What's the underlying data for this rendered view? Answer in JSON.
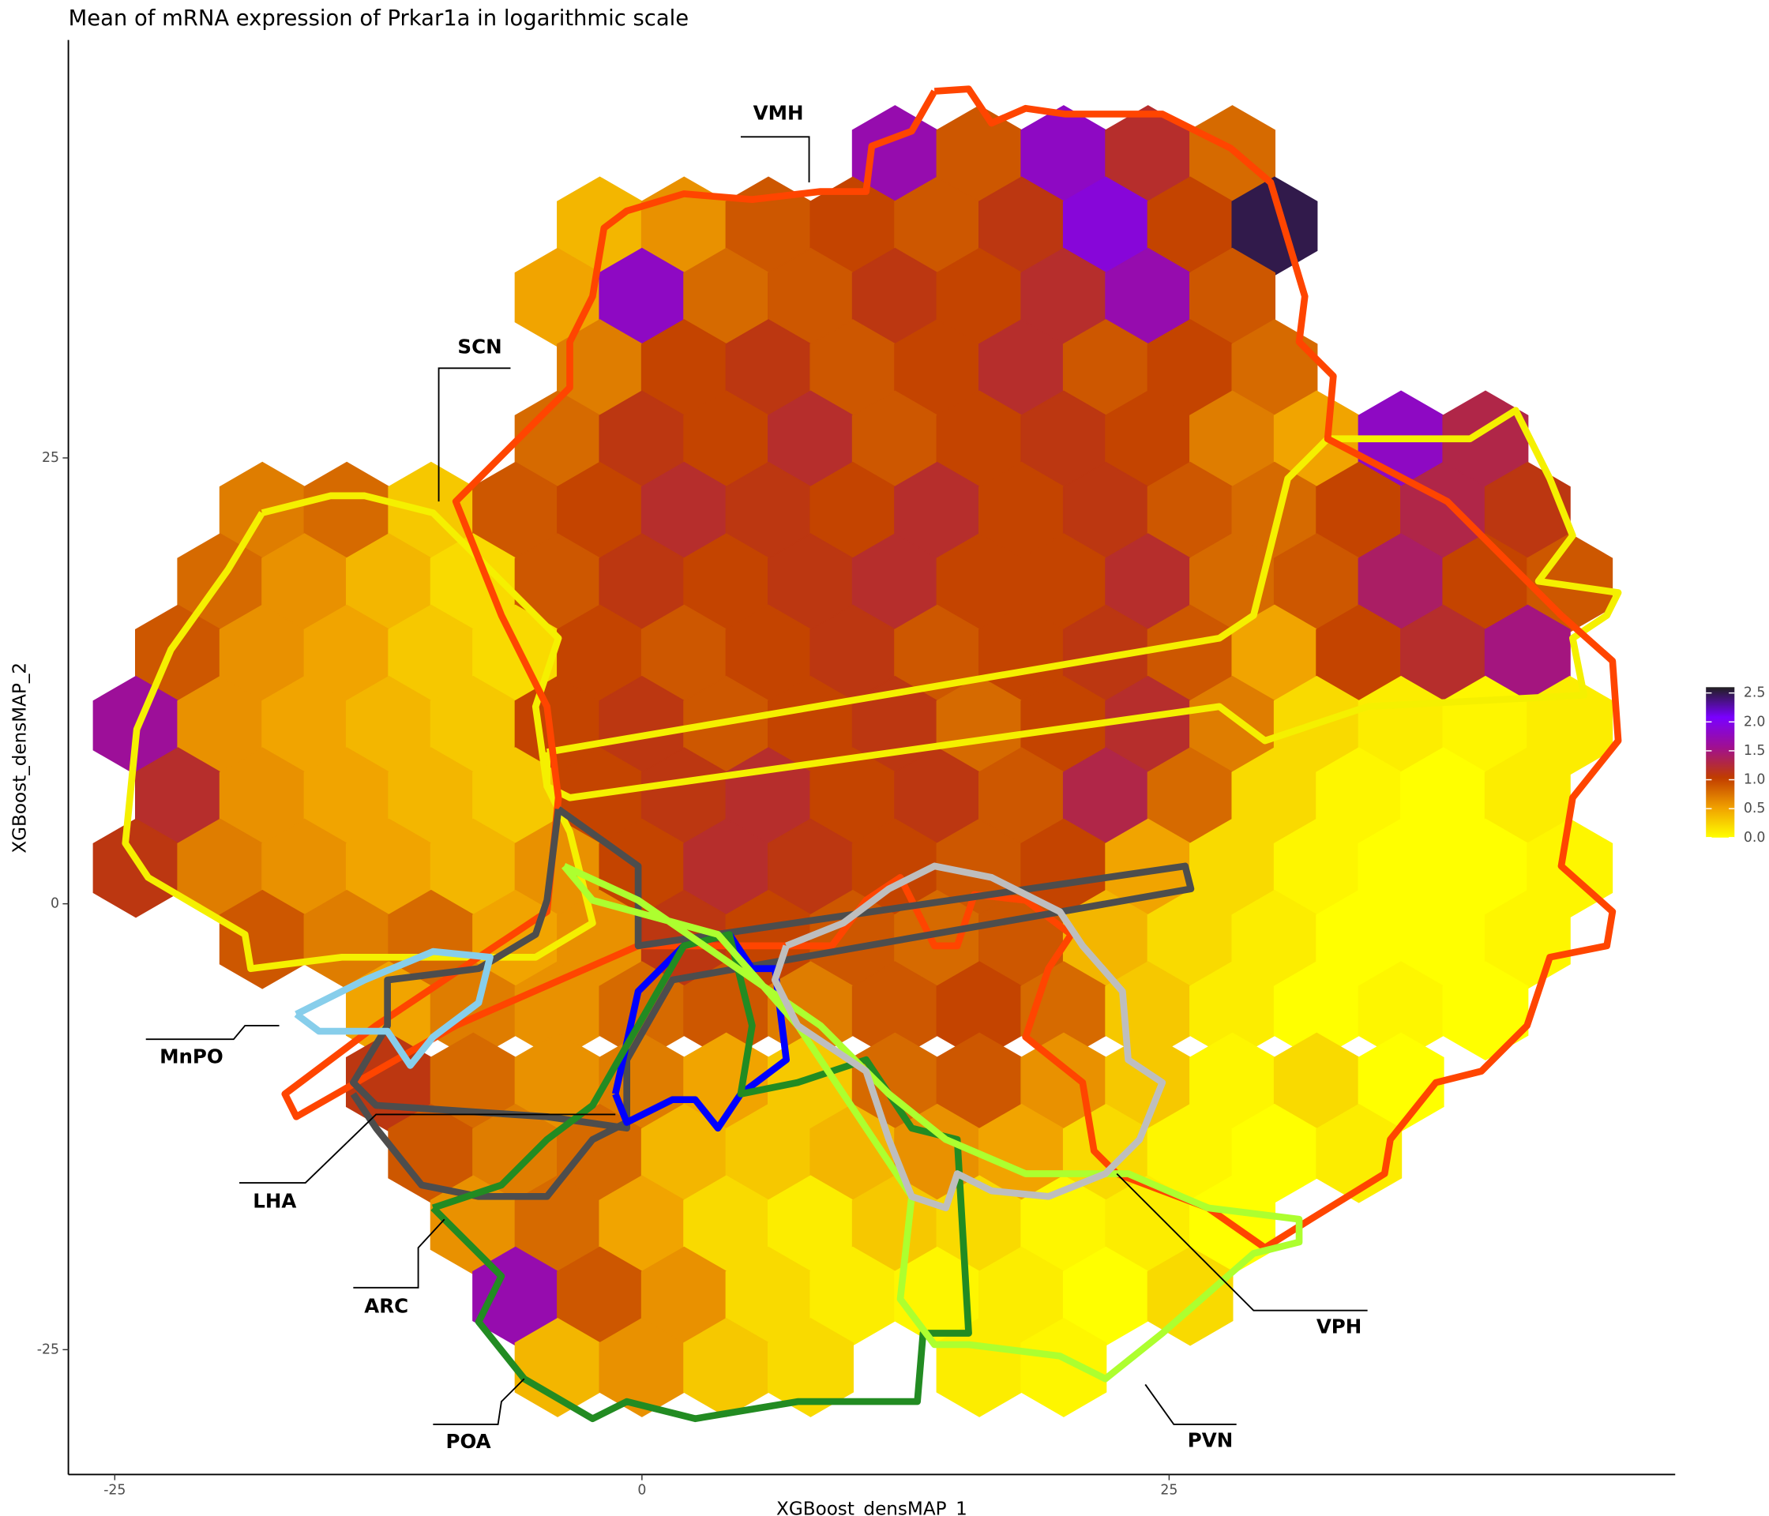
{
  "chart_data": {
    "type": "hexbin",
    "title": "Mean of mRNA expression of Prkar1a in logarithmic scale",
    "x_label": "XGBoost_densMAP_1",
    "y_label": "XGBoost_densMAP_2",
    "xlim": [
      -27.2,
      49
    ],
    "ylim": [
      -32,
      48.4
    ],
    "xticks": [
      -25,
      0,
      25
    ],
    "yticks": [
      -25,
      0,
      25
    ],
    "rows": [
      {
        "y": 42,
        "x": [
          12,
          16,
          20,
          24,
          28
        ],
        "values": [
          1.7,
          0.9,
          1.8,
          1.2,
          0.8
        ]
      },
      {
        "y": 38,
        "x": [
          -2,
          2,
          6,
          10,
          14,
          18,
          22,
          26,
          30
        ],
        "values": [
          0.4,
          0.6,
          0.9,
          1.0,
          0.9,
          1.1,
          1.9,
          1.0,
          2.5
        ]
      },
      {
        "y": 34,
        "x": [
          -4,
          0,
          4,
          8,
          12,
          16,
          20,
          24,
          28
        ],
        "values": [
          0.5,
          1.8,
          0.8,
          0.9,
          1.1,
          1.0,
          1.2,
          1.7,
          0.9
        ]
      },
      {
        "y": 30,
        "x": [
          -2,
          2,
          6,
          10,
          14,
          18,
          22,
          26,
          30
        ],
        "values": [
          0.7,
          1.0,
          1.1,
          0.9,
          1.0,
          1.2,
          0.9,
          1.0,
          0.8
        ]
      },
      {
        "y": 26,
        "x": [
          -4,
          0,
          4,
          8,
          12,
          16,
          20,
          24,
          28,
          32,
          36,
          40
        ],
        "values": [
          0.8,
          1.1,
          1.0,
          1.2,
          0.9,
          1.0,
          1.1,
          1.0,
          0.7,
          0.5,
          1.8,
          1.3
        ]
      },
      {
        "y": 22,
        "x": [
          -18,
          -14,
          -10,
          -6,
          -2,
          2,
          6,
          10,
          14,
          18,
          22,
          26,
          30,
          34,
          38,
          42
        ],
        "values": [
          0.7,
          0.8,
          0.3,
          0.9,
          1.0,
          1.2,
          1.1,
          1.0,
          1.2,
          1.0,
          1.1,
          0.9,
          0.8,
          1.0,
          1.3,
          1.1
        ]
      },
      {
        "y": 18,
        "x": [
          -20,
          -16,
          -12,
          -8,
          -4,
          0,
          4,
          8,
          12,
          16,
          20,
          24,
          28,
          32,
          36,
          40,
          44
        ],
        "values": [
          0.8,
          0.6,
          0.4,
          0.2,
          0.9,
          1.1,
          1.0,
          1.1,
          1.2,
          1.0,
          1.0,
          1.2,
          0.8,
          0.9,
          1.4,
          1.0,
          0.9
        ]
      },
      {
        "y": 14,
        "x": [
          -22,
          -18,
          -14,
          -10,
          -6,
          -2,
          2,
          6,
          10,
          14,
          18,
          22,
          26,
          30,
          34,
          38,
          42
        ],
        "values": [
          0.9,
          0.6,
          0.5,
          0.3,
          0.2,
          1.0,
          0.9,
          1.0,
          1.1,
          0.9,
          1.0,
          1.1,
          0.9,
          0.5,
          1.0,
          1.2,
          1.5
        ]
      },
      {
        "y": 10,
        "x": [
          -24,
          -20,
          -16,
          -12,
          -8,
          -4,
          0,
          4,
          8,
          12,
          16,
          20,
          24,
          28,
          32,
          36,
          40,
          44
        ],
        "values": [
          1.6,
          0.6,
          0.5,
          0.4,
          0.3,
          1.0,
          1.1,
          0.9,
          1.0,
          1.1,
          0.8,
          1.0,
          1.2,
          0.7,
          0.2,
          0.1,
          0.05,
          0.1
        ]
      },
      {
        "y": 6,
        "x": [
          -22,
          -18,
          -14,
          -10,
          -6,
          -2,
          2,
          6,
          10,
          14,
          18,
          22,
          26,
          30,
          34,
          38,
          42
        ],
        "values": [
          1.2,
          0.6,
          0.5,
          0.4,
          0.3,
          1.0,
          1.1,
          1.2,
          1.0,
          1.1,
          0.9,
          1.3,
          0.8,
          0.2,
          0.05,
          0.0,
          0.1
        ]
      },
      {
        "y": 2,
        "x": [
          -24,
          -20,
          -16,
          -12,
          -8,
          -4,
          0,
          4,
          8,
          12,
          16,
          20,
          24,
          28,
          32,
          36,
          40,
          44
        ],
        "values": [
          1.1,
          0.7,
          0.6,
          0.5,
          0.4,
          0.6,
          1.0,
          1.2,
          1.1,
          1.0,
          0.9,
          1.0,
          0.5,
          0.2,
          0.05,
          0.0,
          0.0,
          0.05
        ]
      },
      {
        "y": -2,
        "x": [
          -18,
          -14,
          -10,
          -6,
          -2,
          2,
          6,
          10,
          14,
          18,
          22,
          26,
          30,
          34,
          38,
          42
        ],
        "values": [
          0.9,
          0.7,
          0.8,
          0.5,
          0.6,
          1.1,
          1.0,
          0.9,
          0.8,
          0.9,
          0.4,
          0.2,
          0.1,
          0.0,
          0.0,
          0.05
        ]
      },
      {
        "y": -6,
        "x": [
          -12,
          -8,
          -4,
          0,
          4,
          8,
          12,
          16,
          20,
          24,
          28,
          32,
          36,
          40
        ],
        "values": [
          0.5,
          0.7,
          0.6,
          0.8,
          0.9,
          0.7,
          0.9,
          1.0,
          0.8,
          0.3,
          0.1,
          0.0,
          0.05,
          0.0
        ]
      },
      {
        "y": -10,
        "x": [
          -12,
          -8,
          -4,
          0,
          4,
          8,
          12,
          16,
          20,
          24,
          28,
          32,
          36
        ],
        "values": [
          1.1,
          0.8,
          0.6,
          0.7,
          0.5,
          0.3,
          0.8,
          0.9,
          0.6,
          0.3,
          0.05,
          0.2,
          0.0
        ]
      },
      {
        "y": -14,
        "x": [
          -10,
          -6,
          -2,
          2,
          6,
          10,
          14,
          18,
          22,
          26,
          30,
          34
        ],
        "values": [
          0.9,
          0.7,
          0.8,
          0.4,
          0.3,
          0.4,
          0.6,
          0.5,
          0.2,
          0.05,
          0.0,
          0.1
        ]
      },
      {
        "y": -18,
        "x": [
          -8,
          -4,
          0,
          4,
          8,
          12,
          16,
          20,
          24,
          28
        ],
        "values": [
          0.6,
          0.8,
          0.5,
          0.2,
          0.1,
          0.3,
          0.2,
          0.05,
          0.1,
          0.0
        ]
      },
      {
        "y": -22,
        "x": [
          -6,
          -2,
          2,
          6,
          10,
          14,
          18,
          22,
          26
        ],
        "values": [
          1.7,
          0.9,
          0.6,
          0.2,
          0.1,
          0.05,
          0.1,
          0.0,
          0.2
        ]
      },
      {
        "y": -26,
        "x": [
          -4,
          0,
          4,
          8,
          16,
          20
        ],
        "values": [
          0.4,
          0.6,
          0.3,
          0.2,
          0.1,
          0.05
        ]
      }
    ],
    "colorbar": {
      "lim": [
        0,
        2.6
      ],
      "colors": [
        "#ffff00",
        "#f0a000",
        "#c03c00",
        "#a01090",
        "#7a00ff",
        "#202020"
      ],
      "ticks": [
        {
          "value": 0,
          "label": "0.0"
        },
        {
          "value": 0.5,
          "label": "0.5"
        },
        {
          "value": 1,
          "label": "1.0"
        },
        {
          "value": 1.5,
          "label": "1.5"
        },
        {
          "value": 2,
          "label": "2.0"
        },
        {
          "value": 2.5,
          "label": "2.5"
        }
      ]
    },
    "annotations": [
      "VMH",
      "SCN",
      "MnPO",
      "LHA",
      "ARC",
      "POA",
      "VPH",
      "PVN"
    ]
  }
}
